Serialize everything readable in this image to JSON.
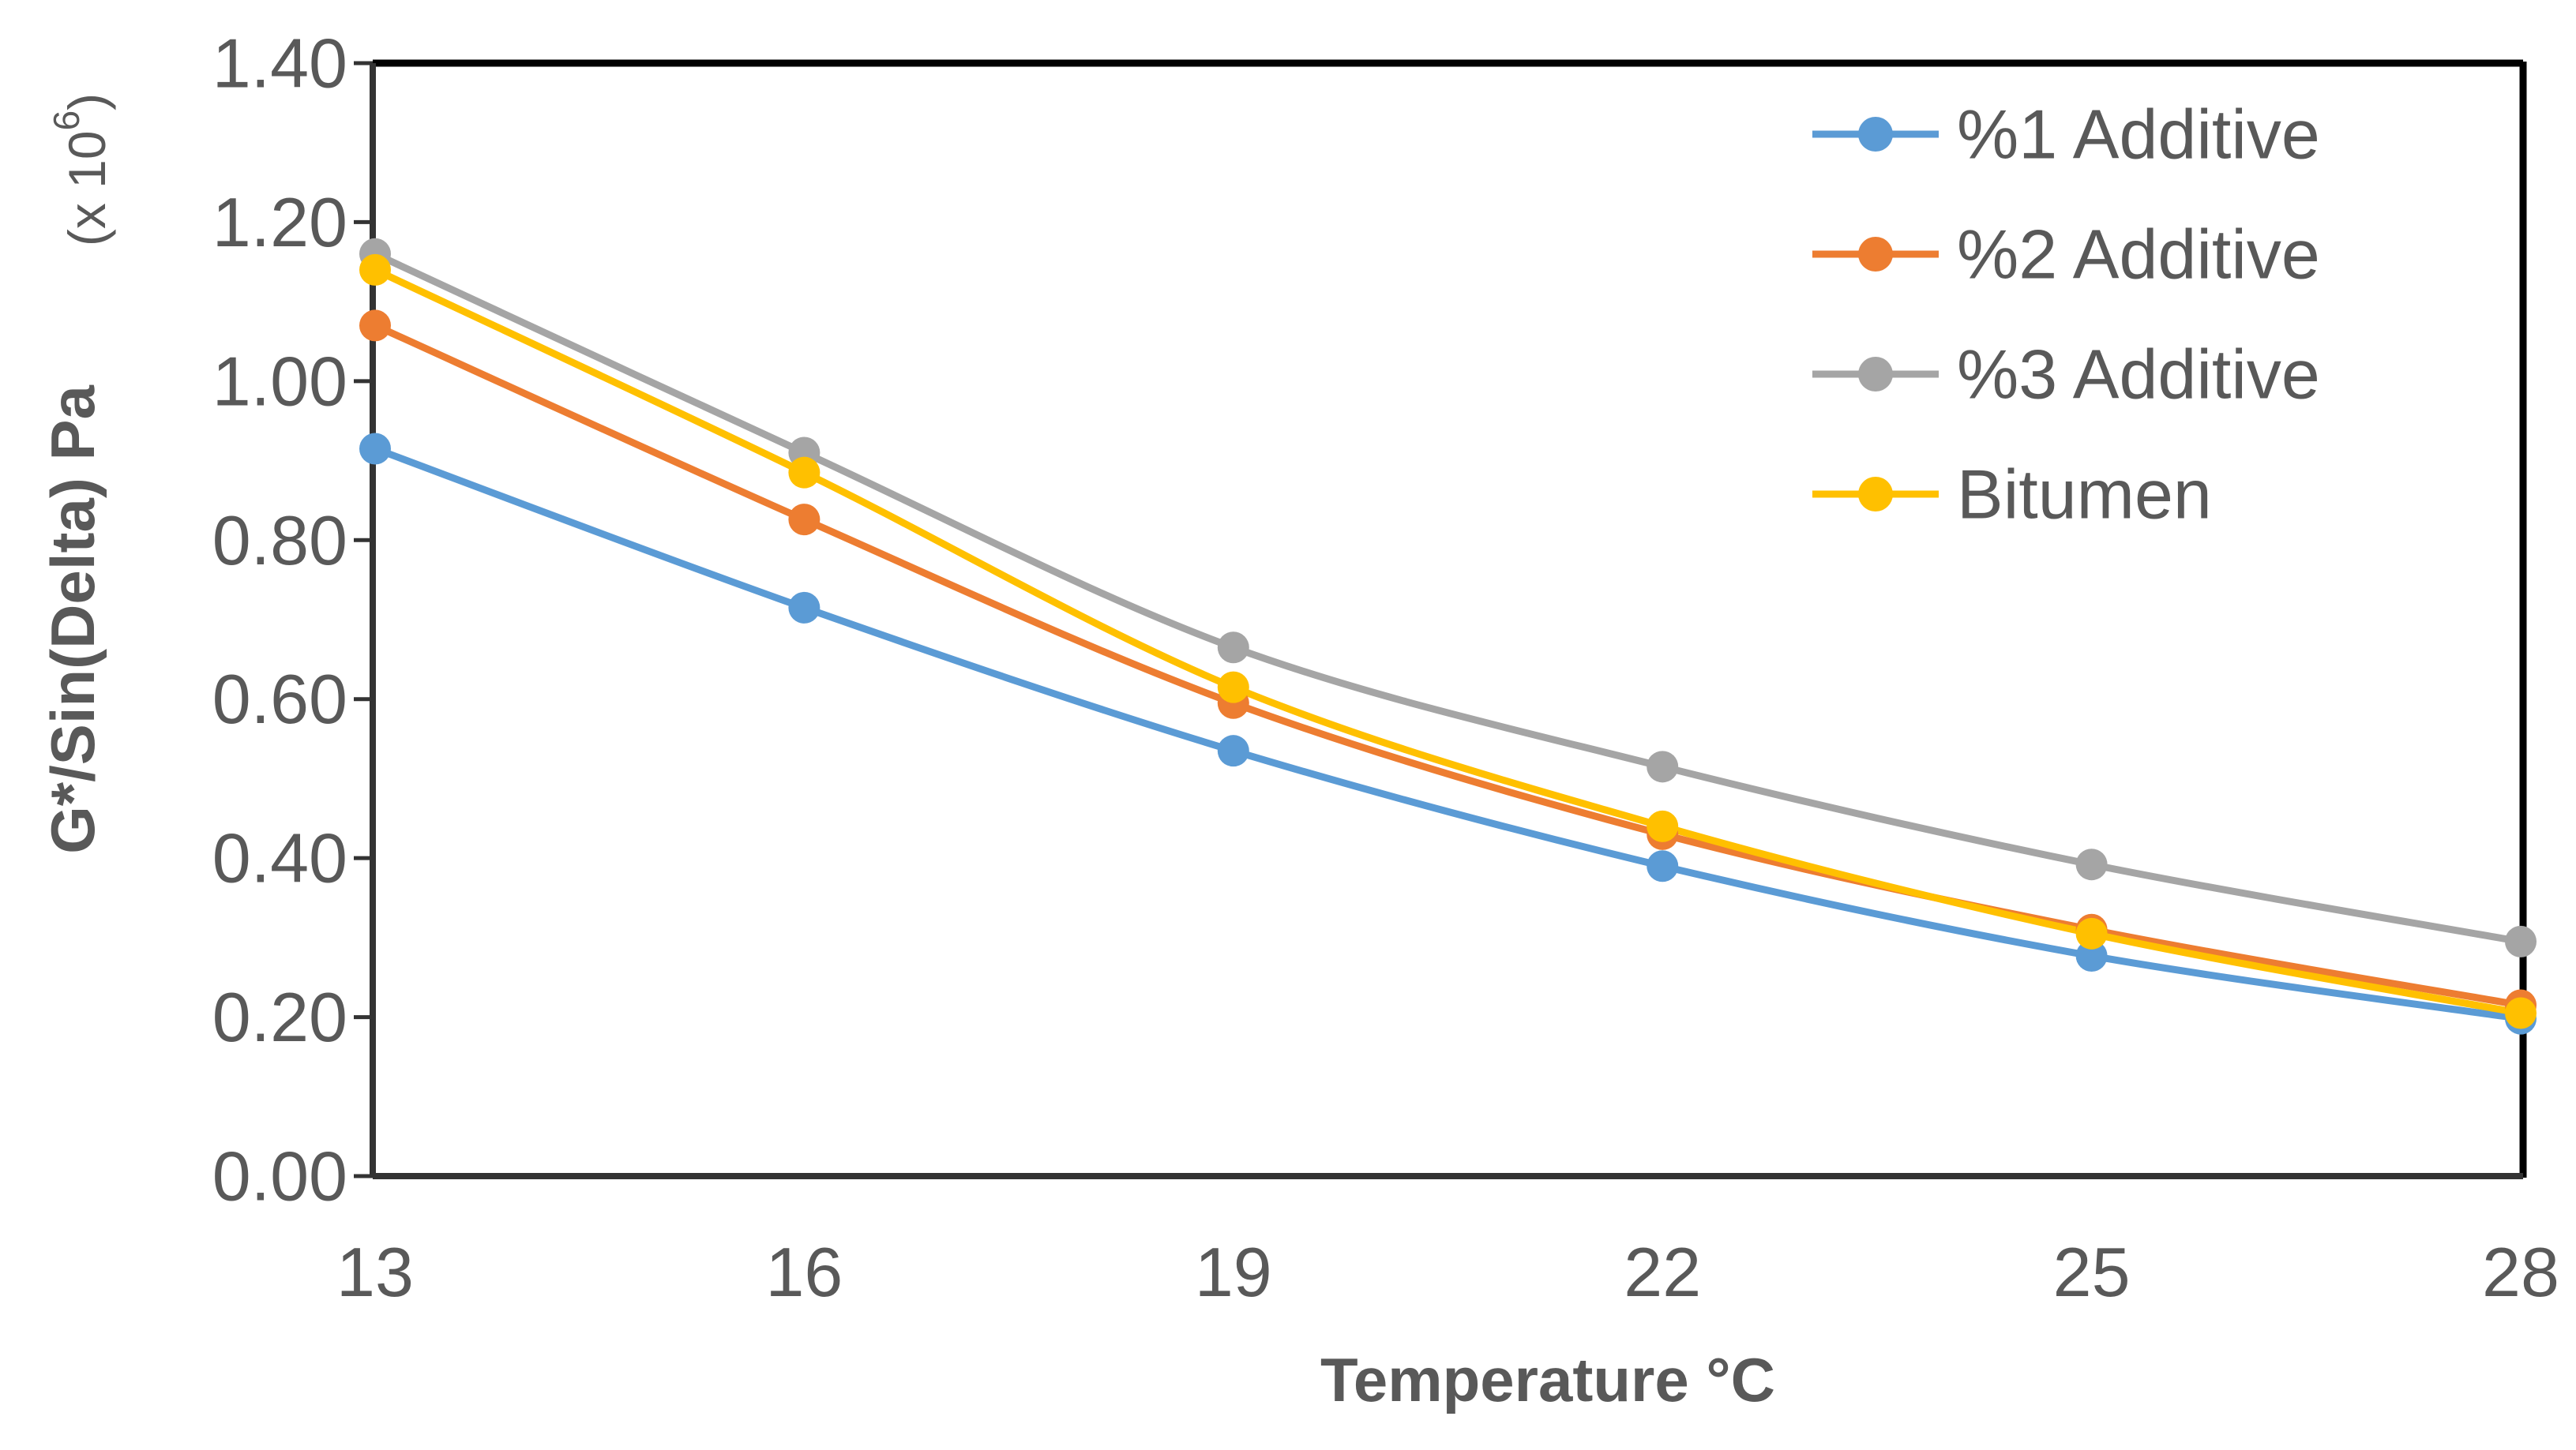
{
  "chart_data": {
    "type": "line",
    "title": "",
    "xlabel": "Temperature °C",
    "ylabel": "G*/Sin(Delta) Pa",
    "y_unit_multiplier": "(x 10",
    "y_unit_exponent": "6",
    "y_unit_close": ")",
    "x": [
      13,
      16,
      19,
      22,
      25,
      28
    ],
    "x_tick_labels": [
      "13",
      "16",
      "19",
      "22",
      "25",
      "28"
    ],
    "ylim": [
      0,
      1.4
    ],
    "y_ticks": [
      0,
      0.2,
      0.4,
      0.6,
      0.8,
      1.0,
      1.2,
      1.4
    ],
    "y_tick_labels": [
      "0.00",
      "0.20",
      "0.40",
      "0.60",
      "0.80",
      "1.00",
      "1.20",
      "1.40"
    ],
    "grid": false,
    "legend_position": "top-right",
    "smooth_lines": true,
    "series": [
      {
        "name": "%1 Additive",
        "color": "#5B9BD5",
        "values": [
          0.915,
          0.715,
          0.535,
          0.39,
          0.277,
          0.198
        ]
      },
      {
        "name": "%2 Additive",
        "color": "#ED7D31",
        "values": [
          1.07,
          0.826,
          0.595,
          0.43,
          0.31,
          0.215
        ]
      },
      {
        "name": "%3 Additive",
        "color": "#A5A5A5",
        "values": [
          1.16,
          0.91,
          0.665,
          0.515,
          0.392,
          0.295
        ]
      },
      {
        "name": "Bitumen",
        "color": "#FFC000",
        "values": [
          1.14,
          0.885,
          0.615,
          0.44,
          0.305,
          0.205
        ]
      }
    ]
  }
}
